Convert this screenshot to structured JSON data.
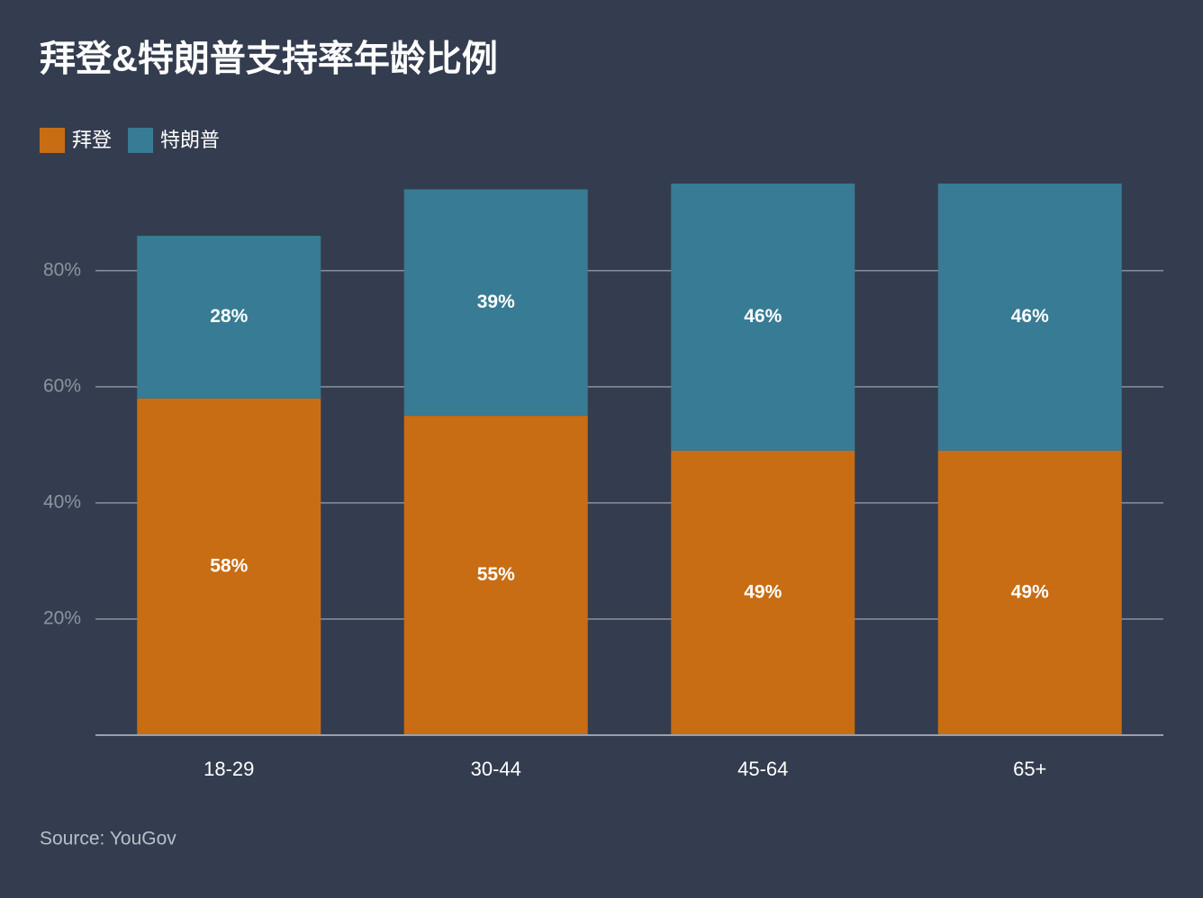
{
  "chart_data": {
    "type": "stacked_bar",
    "title": "拜登&特朗普支持率年龄比例",
    "source": "Source: YouGov",
    "categories": [
      "18-29",
      "30-44",
      "45-64",
      "65+"
    ],
    "series": [
      {
        "name": "拜登",
        "color": "#c86d14",
        "values": [
          58,
          55,
          49,
          49
        ],
        "value_labels": [
          "58%",
          "55%",
          "49%",
          "49%"
        ]
      },
      {
        "name": "特朗普",
        "color": "#387b94",
        "values": [
          28,
          39,
          46,
          46
        ],
        "value_labels": [
          "28%",
          "39%",
          "46%",
          "46%"
        ]
      }
    ],
    "ylim": [
      0,
      95
    ],
    "yticks": [
      {
        "value": 20,
        "label": "20%"
      },
      {
        "value": 40,
        "label": "40%"
      },
      {
        "value": 60,
        "label": "60%"
      },
      {
        "value": 80,
        "label": "80%"
      }
    ],
    "grid": true,
    "legend": "top-left"
  }
}
